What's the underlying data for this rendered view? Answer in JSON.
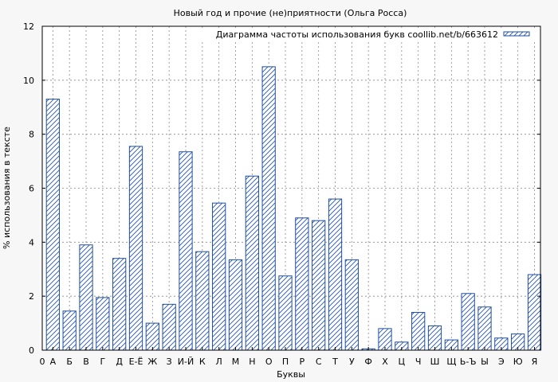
{
  "chart_data": {
    "type": "bar",
    "title": "Новый год и прочие (не)приятности (Ольга Росса)",
    "xlabel": "Буквы",
    "ylabel": "% использования в тексте",
    "legend": "Диаграмма частоты использования букв coollib.net/b/663612",
    "legend_position": "top-right",
    "grid": true,
    "ylim": [
      0,
      12
    ],
    "yticks": [
      0,
      2,
      4,
      6,
      8,
      10,
      12
    ],
    "x_start_label": "0",
    "categories": [
      "А",
      "Б",
      "В",
      "Г",
      "Д",
      "Е-Ё",
      "Ж",
      "З",
      "И-Й",
      "К",
      "Л",
      "М",
      "Н",
      "О",
      "П",
      "Р",
      "С",
      "Т",
      "У",
      "Ф",
      "Х",
      "Ц",
      "Ч",
      "Ш",
      "Щ",
      "Ь-Ъ",
      "Ы",
      "Э",
      "Ю",
      "Я"
    ],
    "values": [
      9.3,
      1.45,
      3.9,
      1.95,
      3.4,
      7.55,
      1.0,
      1.7,
      7.35,
      3.65,
      5.45,
      3.35,
      6.45,
      10.5,
      2.75,
      4.9,
      4.8,
      5.6,
      3.35,
      0.05,
      0.8,
      0.3,
      1.4,
      0.9,
      0.38,
      2.1,
      1.6,
      0.45,
      0.6,
      2.8
    ],
    "colors": {
      "bar_stroke": "#1f4fa0",
      "hatch": "#1f4fa0",
      "bar_fill": "#ffffff",
      "grid": "#888888"
    }
  }
}
